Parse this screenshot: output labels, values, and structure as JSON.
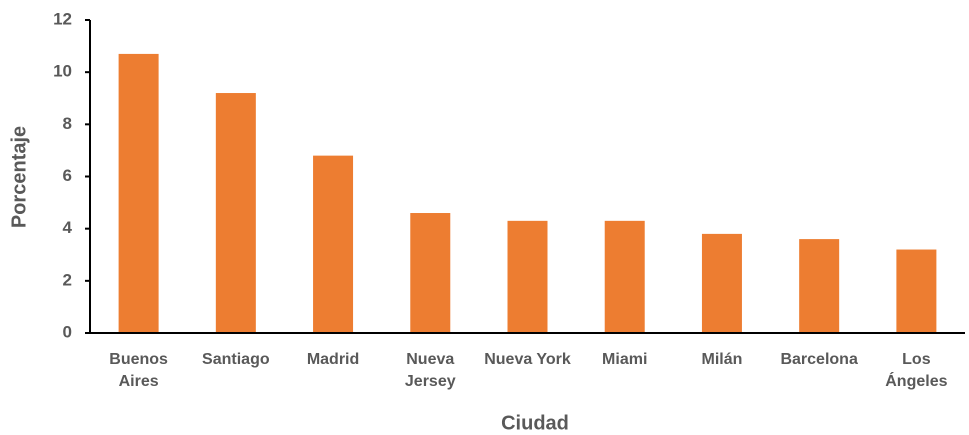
{
  "chart_data": {
    "type": "bar",
    "categories": [
      "Buenos Aires",
      "Santiago",
      "Madrid",
      "Nueva Jersey",
      "Nueva York",
      "Miami",
      "Milán",
      "Barcelona",
      "Los Ángeles"
    ],
    "values": [
      10.7,
      9.2,
      6.8,
      4.6,
      4.3,
      4.3,
      3.8,
      3.6,
      3.2
    ],
    "color": "#ED7D31",
    "xlabel": "Ciudad",
    "ylabel": "Porcentaje",
    "ylim": [
      0,
      12
    ],
    "yticks": [
      0,
      2,
      4,
      6,
      8,
      10,
      12
    ],
    "grid": false
  }
}
